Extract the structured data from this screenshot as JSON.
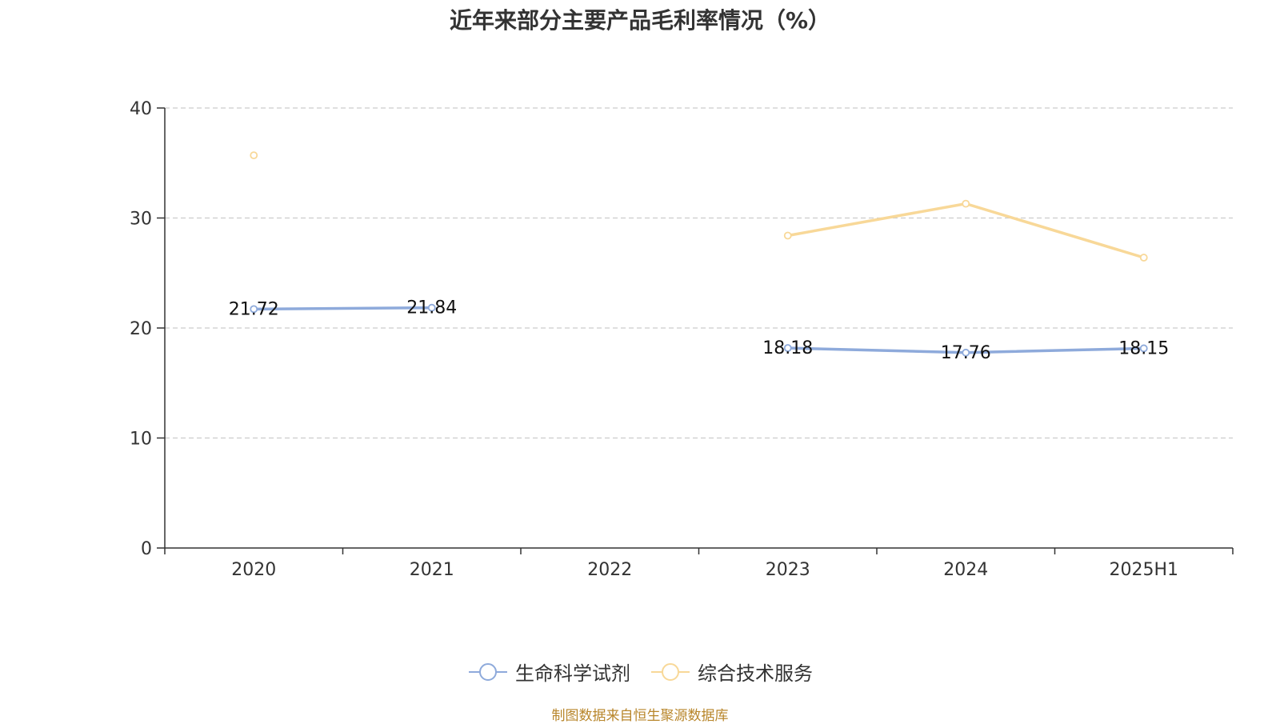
{
  "chart_data": {
    "type": "line",
    "title": "近年来部分主要产品毛利率情况（%）",
    "categories": [
      "2020",
      "2021",
      "2022",
      "2023",
      "2024",
      "2025H1"
    ],
    "ylim": [
      0,
      40
    ],
    "yticks": [
      0,
      10,
      20,
      30,
      40
    ],
    "grid": true,
    "legend": "bottom",
    "series": [
      {
        "name": "生命科学试剂",
        "color": "#8eaadb",
        "values": [
          21.72,
          21.84,
          null,
          18.18,
          17.76,
          18.15
        ],
        "labels": [
          "21.72",
          "21.84",
          "",
          "18.18",
          "17.76",
          "18.15"
        ]
      },
      {
        "name": "综合技术服务",
        "color": "#f8d898",
        "values": [
          35.7,
          null,
          null,
          28.4,
          31.3,
          26.4
        ]
      }
    ]
  },
  "source": "制图数据来自恒生聚源数据库"
}
